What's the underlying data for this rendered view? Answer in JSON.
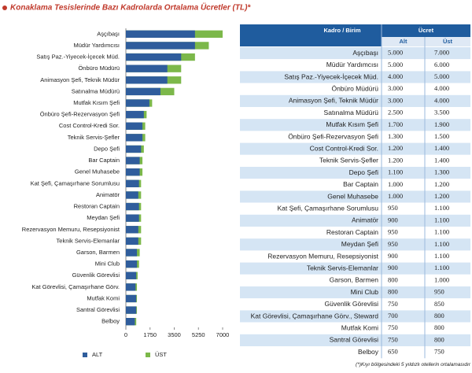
{
  "chart_data": {
    "type": "bar",
    "orientation": "horizontal",
    "title": "Konaklama Tesislerinde Bazı Kadrolarda Ortalama Ücretler (TL)*",
    "categories": [
      "Aşçıbaşı",
      "Müdür Yardımcısı",
      "Satış Paz.-Yiyecek-İçecek Müd.",
      "Önbüro Müdürü",
      "Animasyon Şefi, Teknik Müdür",
      "Satınalma Müdürü",
      "Mutfak Kısım Şefi",
      "Önbüro Şefi-Rezervasyon Şefi",
      "Cost Control-Kredi Sor.",
      "Teknik Servis-Şefler",
      "Depo Şefi",
      "Bar Captain",
      "Genel Muhasebe",
      "Kat Şefi, Çamaşırhane Sorumlusu",
      "Animatör",
      "Restoran Captain",
      "Meydan Şefi",
      "Rezervasyon Memuru, Resepsiyonist",
      "Teknik Servis-Elemanlar",
      "Garson, Barmen",
      "Mini Club",
      "Güvenlik Görevlisi",
      "Kat Görevlisi, Çamaşırhane Görv.",
      "Mutfak Komi",
      "Santral Görevlisi",
      "Belboy"
    ],
    "series": [
      {
        "name": "ALT",
        "color": "#2f5d9c",
        "values": [
          5000,
          5000,
          4000,
          3000,
          3000,
          2500,
          1700,
          1300,
          1200,
          1200,
          1100,
          1000,
          1000,
          950,
          900,
          950,
          950,
          900,
          900,
          800,
          800,
          750,
          700,
          750,
          750,
          650
        ]
      },
      {
        "name": "ÜST",
        "color": "#7cb84a",
        "values": [
          7000,
          6000,
          5000,
          4000,
          4000,
          3500,
          1900,
          1500,
          1400,
          1400,
          1300,
          1200,
          1200,
          1100,
          1100,
          1100,
          1100,
          1100,
          1100,
          1000,
          950,
          850,
          800,
          800,
          800,
          750
        ]
      }
    ],
    "xlim": [
      0,
      7000
    ],
    "xticks": [
      0,
      1750,
      3500,
      5250,
      7000
    ],
    "legend": "bottom"
  },
  "table": {
    "header": [
      "Kadro / Birim",
      "Ücret"
    ],
    "subheader": [
      "Alt",
      "Üst"
    ],
    "rows": [
      [
        "Aşçıbaşı",
        "5.000",
        "7.000"
      ],
      [
        "Müdür Yardımcısı",
        "5.000",
        "6.000"
      ],
      [
        "Satış Paz.-Yiyecek-İçecek Müd.",
        "4.000",
        "5.000"
      ],
      [
        "Önbüro Müdürü",
        "3.000",
        "4.000"
      ],
      [
        "Animasyon Şefi, Teknik Müdür",
        "3.000",
        "4.000"
      ],
      [
        "Satınalma Müdürü",
        "2.500",
        "3.500"
      ],
      [
        "Mutfak Kısım Şefi",
        "1.700",
        "1.900"
      ],
      [
        "Önbüro Şefi-Rezervasyon Şefi",
        "1.300",
        "1.500"
      ],
      [
        "Cost Control-Kredi Sor.",
        "1.200",
        "1.400"
      ],
      [
        "Teknik Servis-Şefler",
        "1.200",
        "1.400"
      ],
      [
        "Depo Şefi",
        "1.100",
        "1.300"
      ],
      [
        "Bar Captain",
        "1.000",
        "1.200"
      ],
      [
        "Genel Muhasebe",
        "1.000",
        "1.200"
      ],
      [
        "Kat Şefi, Çamaşırhane Sorumlusu",
        "950",
        "1.100"
      ],
      [
        "Animatör",
        "900",
        "1.100"
      ],
      [
        "Restoran Captain",
        "950",
        "1.100"
      ],
      [
        "Meydan Şefi",
        "950",
        "1.100"
      ],
      [
        "Rezervasyon Memuru, Resepsiyonist",
        "900",
        "1.100"
      ],
      [
        "Teknik Servis-Elemanlar",
        "900",
        "1.100"
      ],
      [
        "Garson, Barmen",
        "800",
        "1.000"
      ],
      [
        "Mini Club",
        "800",
        "950"
      ],
      [
        "Güvenlik Görevlisi",
        "750",
        "850"
      ],
      [
        "Kat Görevlisi, Çamaşırhane Görv., Steward",
        "700",
        "800"
      ],
      [
        "Mutfak Komi",
        "750",
        "800"
      ],
      [
        "Santral Görevlisi",
        "750",
        "800"
      ],
      [
        "Belboy",
        "650",
        "750"
      ]
    ],
    "footnote": "(*)Kıyı bölgesindeki 5 yıldızlı otellerin ortalamasıdır"
  }
}
